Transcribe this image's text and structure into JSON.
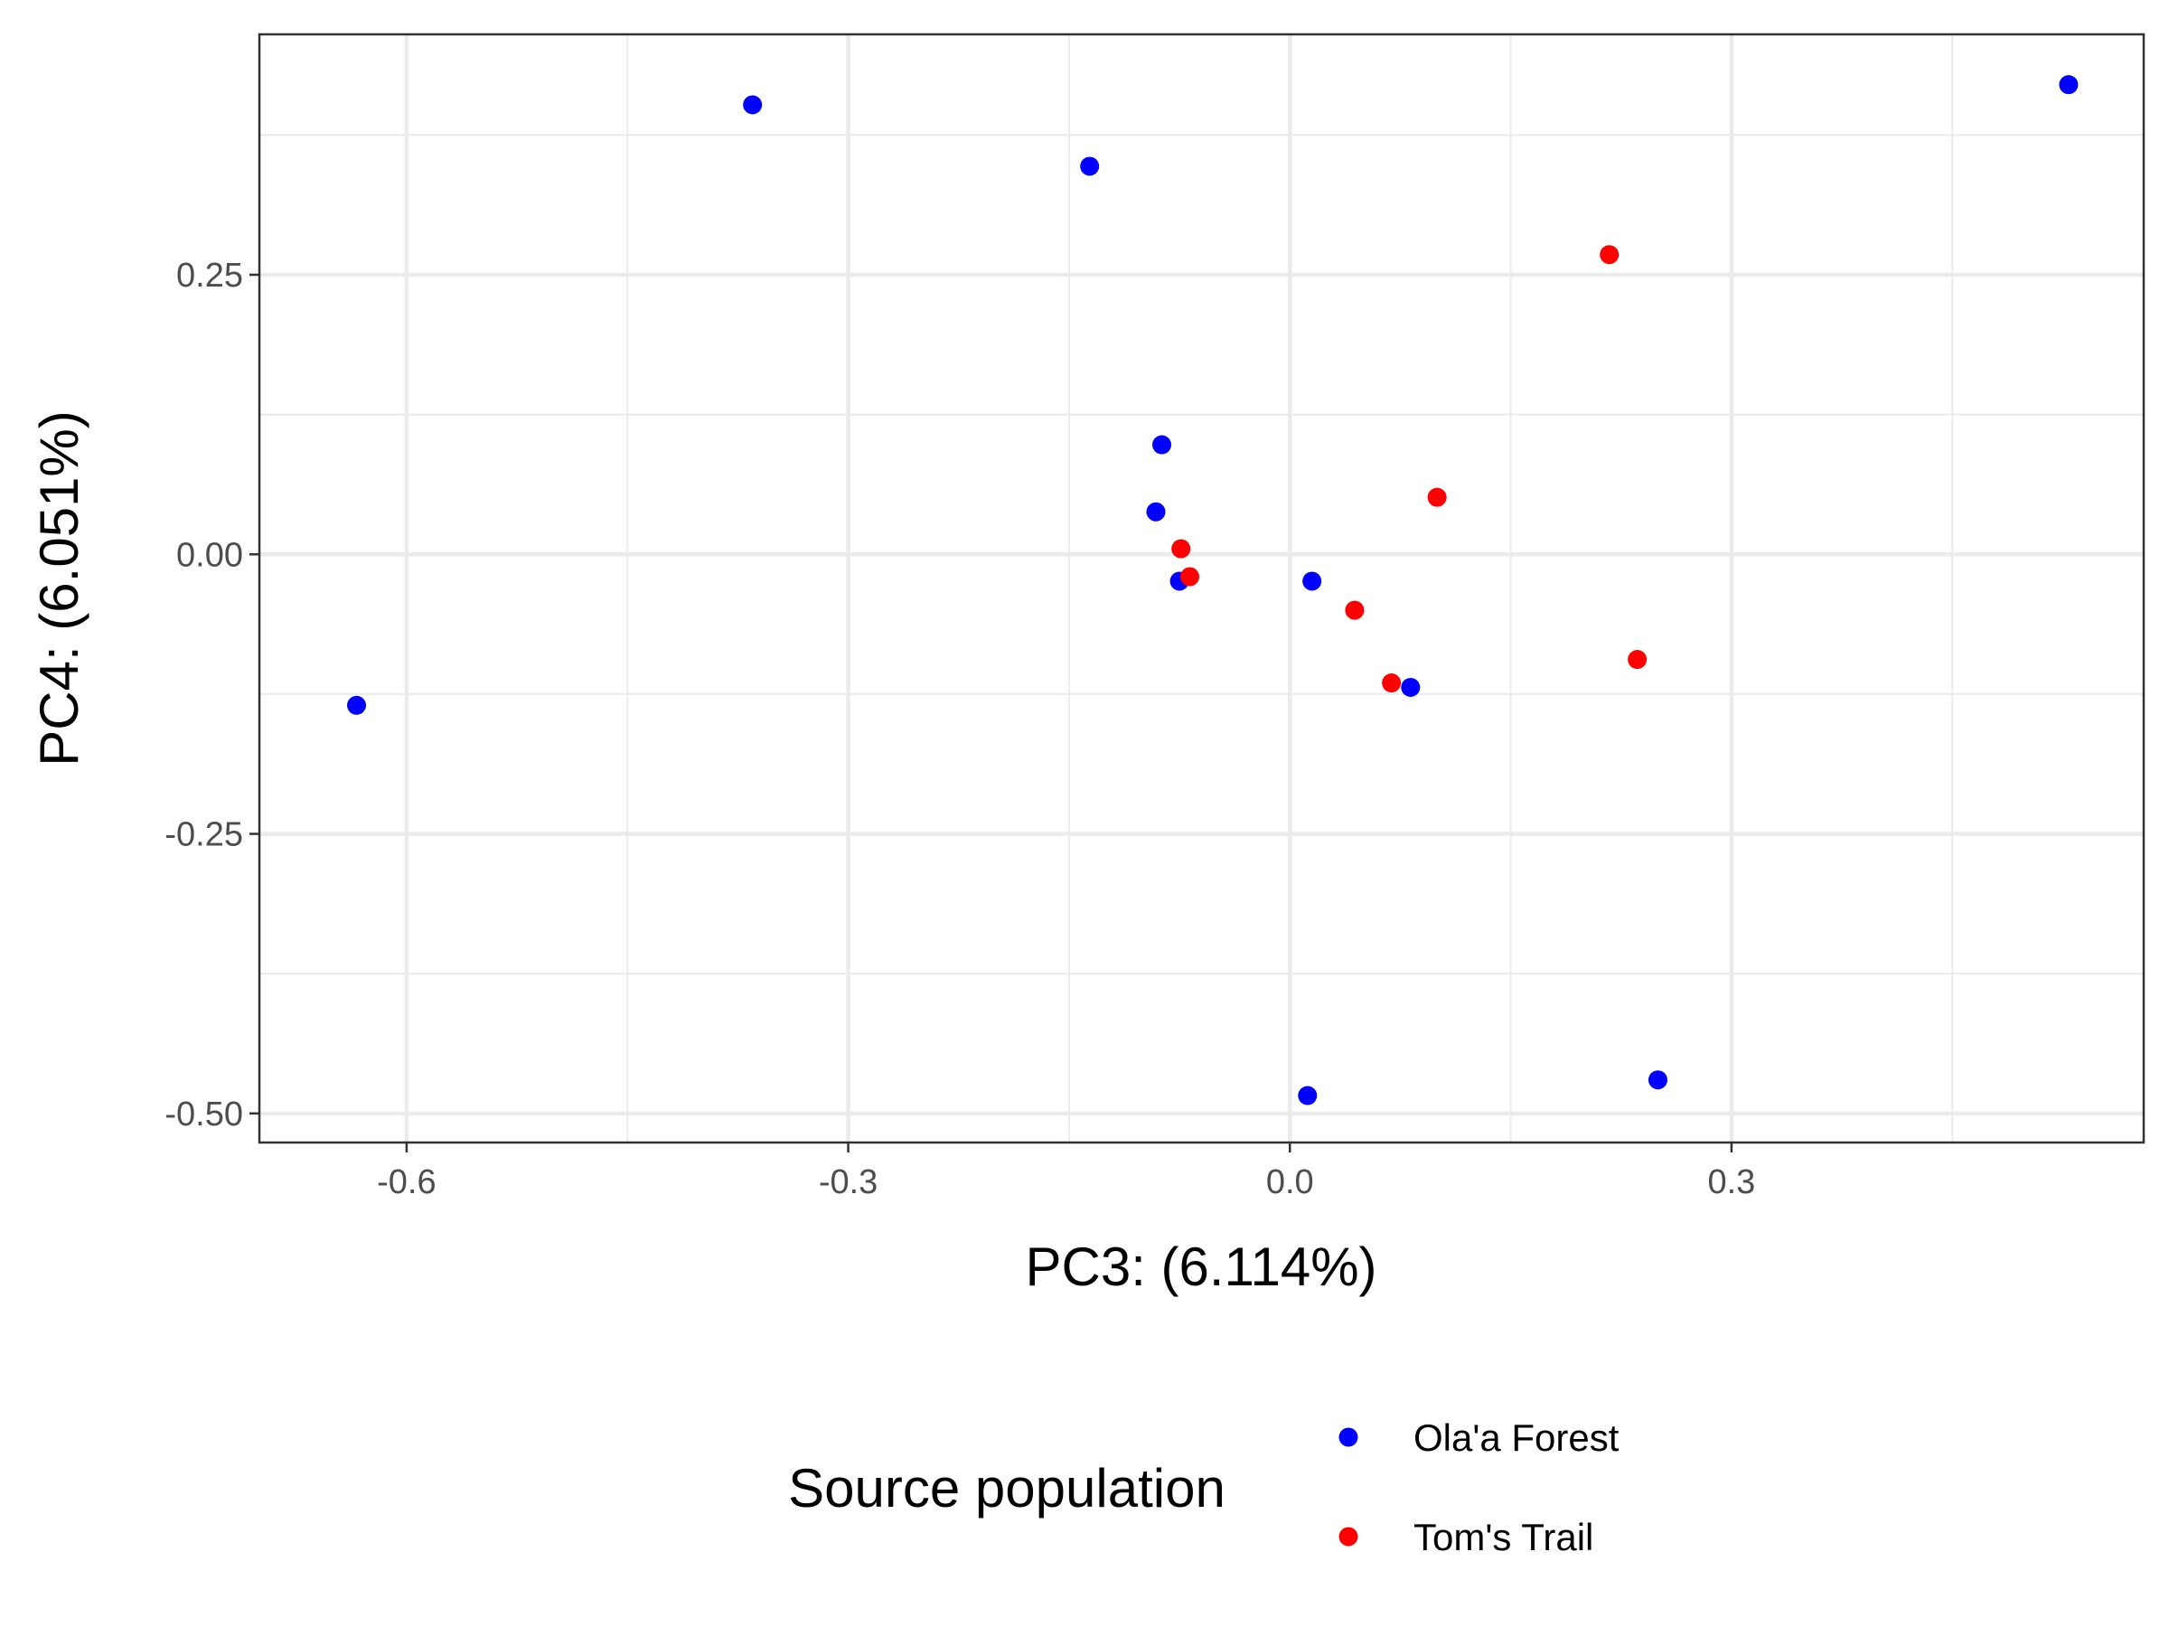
{
  "chart_data": {
    "type": "scatter",
    "xlabel": "PC3: (6.114%)",
    "ylabel": "PC4: (6.051%)",
    "xlim": [
      -0.7,
      0.58
    ],
    "ylim": [
      -0.526,
      0.465
    ],
    "x_ticks": [
      -0.6,
      -0.3,
      0.0,
      0.3
    ],
    "x_tick_labels": [
      "-0.6",
      "-0.3",
      "0.0",
      "0.3"
    ],
    "y_ticks": [
      0.25,
      0.0,
      -0.25,
      -0.5
    ],
    "y_tick_labels": [
      "0.25",
      "0.00",
      "-0.25",
      "-0.50"
    ],
    "x_minor": [
      -0.45,
      -0.15,
      0.15,
      0.45
    ],
    "y_minor": [
      0.375,
      0.125,
      -0.125,
      -0.375
    ],
    "grid": true,
    "legend": {
      "title": "Source population",
      "position": "bottom"
    },
    "series": [
      {
        "name": "Ola'a Forest",
        "color": "#0000ff",
        "points": [
          [
            -0.365,
            0.402
          ],
          [
            -0.136,
            0.347
          ],
          [
            0.529,
            0.42
          ],
          [
            -0.087,
            0.098
          ],
          [
            -0.091,
            0.038
          ],
          [
            -0.075,
            -0.024
          ],
          [
            0.015,
            -0.024
          ],
          [
            0.082,
            -0.119
          ],
          [
            -0.634,
            -0.135
          ],
          [
            0.012,
            -0.484
          ],
          [
            0.25,
            -0.47
          ]
        ]
      },
      {
        "name": "Tom's Trail",
        "color": "#ff0000",
        "points": [
          [
            0.217,
            0.268
          ],
          [
            0.1,
            0.051
          ],
          [
            -0.074,
            0.005
          ],
          [
            -0.068,
            -0.02
          ],
          [
            0.044,
            -0.05
          ],
          [
            0.069,
            -0.115
          ],
          [
            0.236,
            -0.094
          ]
        ]
      }
    ]
  }
}
